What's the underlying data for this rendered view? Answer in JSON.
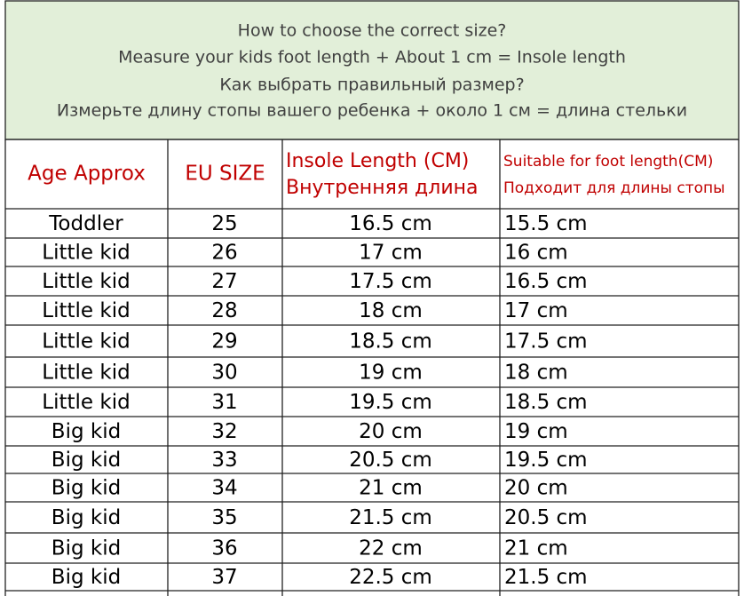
{
  "header": {
    "lines": [
      "How to choose the correct size?",
      "Measure your kids foot length + About 1 cm = Insole length",
      "Как выбрать правильный размер?",
      "Измерьте длину стопы вашего ребенка + около 1 см = длина стельки"
    ]
  },
  "table": {
    "columns": [
      [
        "Age Approx"
      ],
      [
        "EU SIZE"
      ],
      [
        "Insole Length (CM)",
        "Внутренняя длина"
      ],
      [
        "Suitable for foot length(CM)",
        "Подходит для длины стопы"
      ]
    ],
    "rows": [
      [
        "Toddler",
        25,
        "16.5 cm",
        "15.5 cm"
      ],
      [
        "Little kid",
        26,
        "17 cm",
        "16 cm"
      ],
      [
        "Little kid",
        27,
        "17.5 cm",
        "16.5 cm"
      ],
      [
        "Little kid",
        28,
        "18 cm",
        "17 cm"
      ],
      [
        "Little kid",
        29,
        "18.5 cm",
        "17.5 cm"
      ],
      [
        "Little kid",
        30,
        "19 cm",
        "18 cm"
      ],
      [
        "Little kid",
        31,
        "19.5 cm",
        "18.5 cm"
      ],
      [
        "Big kid",
        32,
        "20 cm",
        "19 cm"
      ],
      [
        "Big kid",
        33,
        "20.5 cm",
        "19.5 cm"
      ],
      [
        "Big kid",
        34,
        "21 cm",
        "20 cm"
      ],
      [
        "Big kid",
        35,
        "21.5 cm",
        "20.5 cm"
      ],
      [
        "Big kid",
        36,
        "22 cm",
        "21 cm"
      ],
      [
        "Big kid",
        37,
        "22.5 cm",
        "21.5 cm"
      ]
    ]
  }
}
